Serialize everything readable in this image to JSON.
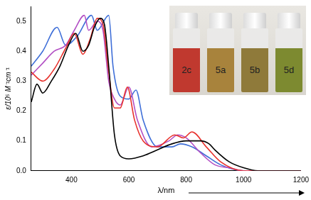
{
  "chart_data": {
    "type": "line",
    "x_label": "λ/nm",
    "y_label": "ε/10⁵ M⁻¹cm⁻¹",
    "xlim": [
      260,
      1200
    ],
    "xticks": [
      400,
      600,
      800,
      1000,
      1200
    ],
    "ylim": [
      0,
      0.55
    ],
    "yticks": [
      {
        "value": 0,
        "label": "0.0"
      },
      0.1,
      0.2,
      0.3,
      0.4,
      0.5
    ],
    "grid": false,
    "series": [
      {
        "color": "#000000",
        "x": [
          260,
          280,
          300,
          330,
          360,
          390,
          415,
          440,
          460,
          480,
          500,
          515,
          530,
          550,
          570,
          600,
          650,
          700,
          750,
          800,
          850,
          880,
          900,
          950,
          1000,
          1050,
          1200
        ],
        "values": [
          0.23,
          0.29,
          0.26,
          0.3,
          0.35,
          0.42,
          0.46,
          0.4,
          0.42,
          0.48,
          0.51,
          0.49,
          0.35,
          0.12,
          0.05,
          0.04,
          0.05,
          0.07,
          0.09,
          0.1,
          0.1,
          0.09,
          0.07,
          0.03,
          0.01,
          0,
          0
        ]
      },
      {
        "color": "#e8322d",
        "x": [
          260,
          300,
          340,
          380,
          410,
          440,
          465,
          490,
          510,
          530,
          550,
          570,
          595,
          620,
          650,
          700,
          760,
          790,
          820,
          870,
          920,
          1000,
          1200
        ],
        "values": [
          0.33,
          0.3,
          0.34,
          0.41,
          0.46,
          0.39,
          0.44,
          0.51,
          0.49,
          0.33,
          0.21,
          0.21,
          0.28,
          0.17,
          0.1,
          0.08,
          0.12,
          0.11,
          0.13,
          0.08,
          0.03,
          0,
          0
        ]
      },
      {
        "color": "#b24fc4",
        "x": [
          260,
          300,
          340,
          380,
          410,
          445,
          460,
          490,
          510,
          530,
          550,
          570,
          600,
          630,
          680,
          740,
          770,
          800,
          850,
          900,
          950,
          1000,
          1200
        ],
        "values": [
          0.32,
          0.36,
          0.4,
          0.42,
          0.47,
          0.52,
          0.47,
          0.5,
          0.47,
          0.3,
          0.24,
          0.22,
          0.28,
          0.17,
          0.08,
          0.1,
          0.12,
          0.11,
          0.06,
          0.02,
          0.01,
          0,
          0
        ]
      },
      {
        "color": "#3f6fd8",
        "x": [
          260,
          300,
          350,
          380,
          420,
          470,
          490,
          530,
          545,
          570,
          600,
          625,
          650,
          700,
          750,
          780,
          820,
          870,
          920,
          1000,
          1200
        ],
        "values": [
          0.35,
          0.4,
          0.48,
          0.42,
          0.45,
          0.52,
          0.47,
          0.52,
          0.35,
          0.25,
          0.24,
          0.27,
          0.17,
          0.08,
          0.08,
          0.09,
          0.08,
          0.05,
          0.02,
          0,
          0
        ]
      }
    ],
    "inset": {
      "labels": [
        "2c",
        "5a",
        "5b",
        "5d"
      ],
      "colors": [
        "#c0392f",
        "#a8833c",
        "#8f7a3a",
        "#7d8a30"
      ]
    }
  }
}
